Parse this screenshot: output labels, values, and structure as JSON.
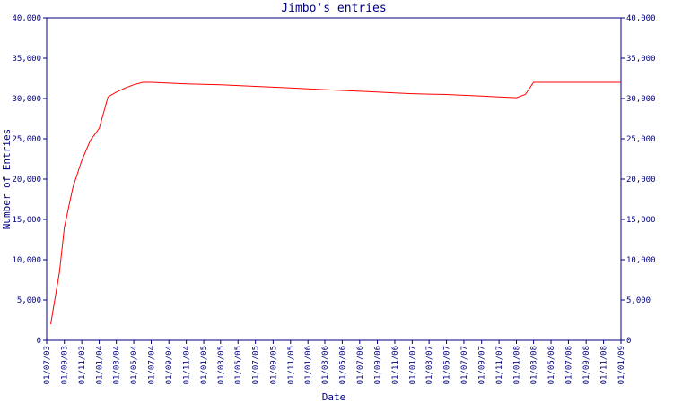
{
  "chart_data": {
    "type": "line",
    "title": "Jimbo's entries",
    "xlabel": "Date",
    "ylabel": "Number of Entries",
    "ylim": [
      0,
      40000
    ],
    "y_ticks": [
      0,
      5000,
      10000,
      15000,
      20000,
      25000,
      30000,
      35000,
      40000
    ],
    "y_tick_labels": [
      "0",
      "5,000",
      "10,000",
      "15,000",
      "20,000",
      "25,000",
      "30,000",
      "35,000",
      "40,000"
    ],
    "x_tick_labels": [
      "01/07/03",
      "01/09/03",
      "01/11/03",
      "01/01/04",
      "01/03/04",
      "01/05/04",
      "01/07/04",
      "01/09/04",
      "01/11/04",
      "01/01/05",
      "01/03/05",
      "01/05/05",
      "01/07/05",
      "01/09/05",
      "01/11/05",
      "01/01/06",
      "01/03/06",
      "01/05/06",
      "01/07/06",
      "01/09/06",
      "01/11/06",
      "01/01/07",
      "01/03/07",
      "01/05/07",
      "01/07/07",
      "01/09/07",
      "01/11/07",
      "01/01/08",
      "01/03/08",
      "01/05/08",
      "01/07/08",
      "01/09/08",
      "01/11/08",
      "01/01/09"
    ],
    "grid": false,
    "line_color": "#ff0000",
    "axis_color": "#000080",
    "series": [
      {
        "x": [
          "2003-07-15",
          "2003-08-15",
          "2003-09-01",
          "2003-10-01",
          "2003-11-01",
          "2003-12-01",
          "2004-01-01",
          "2004-02-01",
          "2004-03-01",
          "2004-04-01",
          "2004-05-01",
          "2004-06-01",
          "2004-07-01",
          "2004-09-01",
          "2004-11-01",
          "2005-01-01",
          "2005-03-01",
          "2005-05-01",
          "2005-07-01",
          "2005-09-01",
          "2005-11-01",
          "2006-01-01",
          "2006-03-01",
          "2006-05-01",
          "2006-07-01",
          "2006-09-01",
          "2006-11-01",
          "2007-01-01",
          "2007-03-01",
          "2007-05-01",
          "2007-07-01",
          "2007-09-01",
          "2007-11-01",
          "2008-01-01",
          "2008-02-01",
          "2008-03-01",
          "2008-05-01",
          "2008-07-01",
          "2008-09-01",
          "2008-11-01",
          "2009-01-01"
        ],
        "values": [
          2000,
          8500,
          14000,
          19000,
          22300,
          24800,
          26300,
          30200,
          30800,
          31300,
          31700,
          32000,
          32000,
          31900,
          31800,
          31750,
          31700,
          31600,
          31500,
          31400,
          31300,
          31200,
          31100,
          31000,
          30900,
          30800,
          30700,
          30600,
          30550,
          30500,
          30400,
          30300,
          30200,
          30100,
          30500,
          32000,
          32000,
          32000,
          32000,
          32000,
          32000
        ]
      }
    ]
  }
}
